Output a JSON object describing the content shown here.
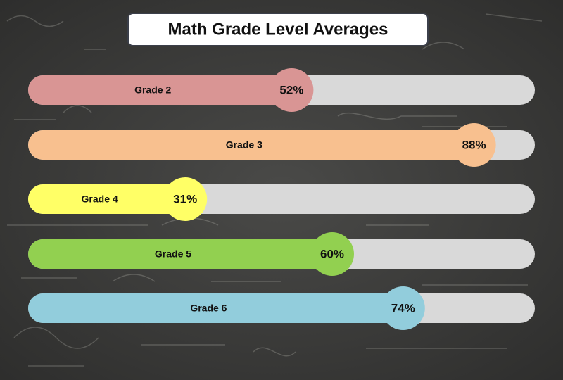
{
  "chart_data": {
    "type": "bar",
    "title": "Math Grade Level Averages",
    "categories": [
      "Grade 2",
      "Grade 3",
      "Grade 4",
      "Grade 5",
      "Grade 6"
    ],
    "values": [
      52,
      88,
      31,
      60,
      74
    ],
    "value_labels": [
      "52%",
      "88%",
      "31%",
      "60%",
      "74%"
    ],
    "colors": [
      "#d99594",
      "#f8c08f",
      "#ffff66",
      "#92d050",
      "#92cddc"
    ],
    "track_color": "#d9d9d9",
    "xlim": [
      0,
      100
    ]
  }
}
